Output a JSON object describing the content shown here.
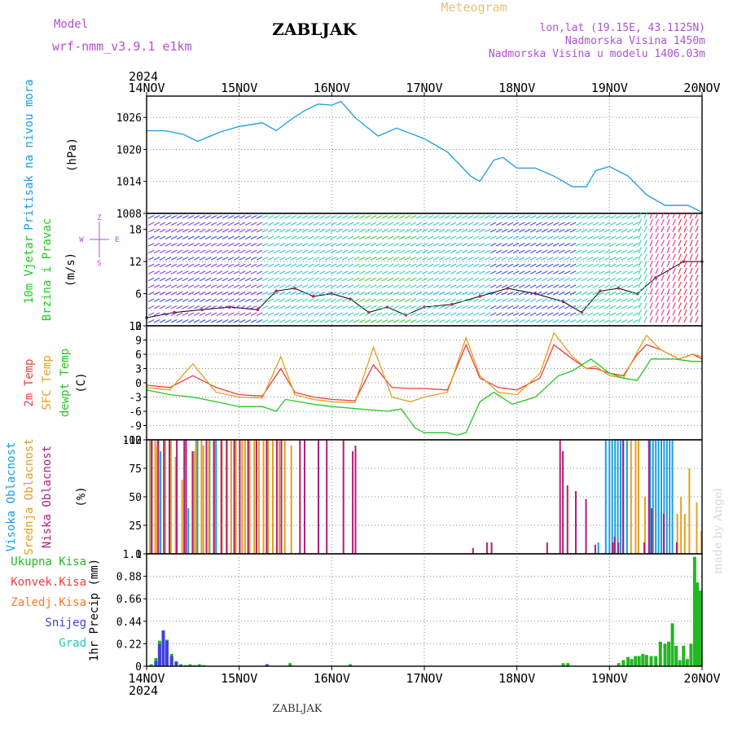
{
  "header": {
    "model_label": "Model",
    "model_name": "wrf-nmm_v3.9.1 e1km",
    "station": "ZABLJAK",
    "meteogram_label": "Meteogram",
    "coords": "lon,lat (19.15E, 43.1125N)",
    "altitude": "Nadmorska Visina 1450m",
    "model_altitude": "Nadmorska Visina u modelu 1406.03m",
    "footer_station": "ZABLJAK",
    "signature": "made by Angel"
  },
  "colors": {
    "pressure": "#1a9de0",
    "temp2m": "#f03c3c",
    "sfc_temp": "#e0a020",
    "dewpt": "#22c822",
    "cloud_high": "#1a9de0",
    "cloud_mid": "#e0a020",
    "cloud_low": "#b01e7a",
    "precip_total": "#22b822",
    "precip_conv": "#f03c3c",
    "precip_frozen": "#f07c2c",
    "precip_snow": "#4040e0",
    "precip_graupel": "#22c8b8",
    "model_label": "#b050d0"
  },
  "chart_data": {
    "type": "line",
    "x_axis": {
      "year": "2024",
      "ticks": [
        "14NOV",
        "15NOV",
        "16NOV",
        "17NOV",
        "18NOV",
        "19NOV",
        "20NOV"
      ],
      "range_days": [
        0,
        6
      ]
    },
    "panels": [
      {
        "id": "pressure",
        "type": "line",
        "ylabel": [
          "Pritisak na nivou mora",
          "(hPa)"
        ],
        "ylim": [
          1008,
          1030
        ],
        "yticks": [
          "1008",
          "1014",
          "1020",
          "1026"
        ],
        "series": [
          {
            "name": "Pritisak na nivou mora",
            "x": [
              0,
              0.2,
              0.4,
              0.55,
              0.8,
              1.0,
              1.25,
              1.4,
              1.55,
              1.7,
              1.85,
              2.0,
              2.1,
              2.25,
              2.5,
              2.7,
              2.85,
              3.0,
              3.25,
              3.5,
              3.6,
              3.75,
              3.85,
              4.0,
              4.2,
              4.4,
              4.6,
              4.75,
              4.85,
              5.0,
              5.2,
              5.4,
              5.6,
              5.85,
              6.0
            ],
            "y": [
              1023.5,
              1023.5,
              1022.8,
              1021.5,
              1023.3,
              1024.3,
              1025.0,
              1023.5,
              1025.5,
              1027.2,
              1028.5,
              1028.3,
              1029.0,
              1026.0,
              1022.5,
              1024.0,
              1023.0,
              1022.0,
              1019.5,
              1015.0,
              1014.0,
              1018.0,
              1018.5,
              1016.5,
              1016.5,
              1015.0,
              1013.0,
              1013.0,
              1016.0,
              1016.8,
              1015.0,
              1011.5,
              1009.5,
              1009.5,
              1008.2
            ]
          }
        ]
      },
      {
        "id": "wind",
        "type": "line",
        "ylabel": [
          "10m Vjetar",
          "Brzina i Pravac",
          "(m/s)"
        ],
        "compass": [
          "Z",
          "W",
          "E",
          "S"
        ],
        "ylim": [
          0,
          21
        ],
        "yticks": [
          "0",
          "6",
          "12",
          "18"
        ],
        "series": [
          {
            "name": "10m Vjetar",
            "x": [
              0,
              0.3,
              0.6,
              0.9,
              1.2,
              1.4,
              1.6,
              1.8,
              2.0,
              2.2,
              2.4,
              2.6,
              2.8,
              3.0,
              3.3,
              3.6,
              3.9,
              4.2,
              4.5,
              4.7,
              4.9,
              5.1,
              5.3,
              5.5,
              5.8,
              6.0
            ],
            "y": [
              1.5,
              2.5,
              3.0,
              3.5,
              3.0,
              6.5,
              7.0,
              5.5,
              6.0,
              5.0,
              2.5,
              3.5,
              2.0,
              3.5,
              4.0,
              5.5,
              7.0,
              6.0,
              4.5,
              2.5,
              6.5,
              7.0,
              6.0,
              9.0,
              12.0,
              12.0
            ]
          }
        ]
      },
      {
        "id": "temperature",
        "type": "line",
        "ylabel": [
          "2m Temp",
          "SFC Temp",
          "dewpt Temp",
          "(C)"
        ],
        "ylim": [
          -12,
          12
        ],
        "yticks": [
          "-12",
          "-9",
          "-6",
          "-3",
          "0",
          "3",
          "6",
          "9",
          "12"
        ],
        "series": [
          {
            "name": "2m Temp",
            "x": [
              0,
              0.25,
              0.5,
              0.75,
              1.0,
              1.25,
              1.45,
              1.6,
              1.8,
              2.0,
              2.25,
              2.45,
              2.65,
              2.85,
              3.0,
              3.25,
              3.45,
              3.6,
              3.8,
              4.0,
              4.25,
              4.4,
              4.6,
              4.75,
              4.85,
              5.0,
              5.15,
              5.3,
              5.4,
              5.55,
              5.75,
              5.9,
              6.0
            ],
            "y": [
              -0.5,
              -1.0,
              1.5,
              -1.0,
              -2.5,
              -2.8,
              3.0,
              -2.0,
              -3.0,
              -3.5,
              -3.8,
              3.8,
              -1.0,
              -1.2,
              -1.2,
              -1.5,
              8.0,
              1.0,
              -1.0,
              -1.5,
              1.0,
              8.0,
              5.0,
              3.0,
              3.0,
              2.0,
              1.5,
              6.0,
              8.0,
              7.0,
              5.0,
              6.0,
              5.0
            ]
          },
          {
            "name": "SFC Temp",
            "x": [
              0,
              0.25,
              0.5,
              0.75,
              1.0,
              1.25,
              1.45,
              1.6,
              1.8,
              2.0,
              2.25,
              2.45,
              2.65,
              2.85,
              3.0,
              3.25,
              3.45,
              3.6,
              3.8,
              4.0,
              4.25,
              4.4,
              4.6,
              4.75,
              4.85,
              5.0,
              5.15,
              5.3,
              5.4,
              5.55,
              5.75,
              5.9,
              6.0
            ],
            "y": [
              -1.0,
              -1.5,
              4.0,
              -2.0,
              -3.0,
              -3.2,
              5.5,
              -2.5,
              -3.5,
              -4.0,
              -4.2,
              7.5,
              -3.0,
              -4.0,
              -3.0,
              -2.0,
              9.5,
              1.5,
              -2.0,
              -2.5,
              2.0,
              10.5,
              5.5,
              3.0,
              3.5,
              1.5,
              1.0,
              6.5,
              10.0,
              7.0,
              5.0,
              6.0,
              5.5
            ]
          },
          {
            "name": "dewpt Temp",
            "x": [
              0,
              0.25,
              0.5,
              0.75,
              1.0,
              1.25,
              1.4,
              1.5,
              1.8,
              2.0,
              2.3,
              2.6,
              2.75,
              2.9,
              3.0,
              3.25,
              3.35,
              3.45,
              3.6,
              3.75,
              3.95,
              4.2,
              4.45,
              4.6,
              4.8,
              5.0,
              5.15,
              5.3,
              5.45,
              5.7,
              5.9,
              6.0
            ],
            "y": [
              -1.5,
              -2.5,
              -3.0,
              -4.0,
              -5.0,
              -5.0,
              -6.0,
              -3.5,
              -4.5,
              -5.0,
              -5.5,
              -6.0,
              -5.5,
              -9.5,
              -10.5,
              -10.5,
              -11.0,
              -10.5,
              -4.0,
              -2.0,
              -4.5,
              -3.0,
              1.5,
              2.5,
              5.0,
              2.0,
              1.0,
              0.5,
              5.0,
              5.0,
              4.5,
              4.5
            ]
          }
        ]
      },
      {
        "id": "clouds",
        "type": "bar",
        "ylabel": [
          "Visoka Oblacnost",
          "Srednja Oblacnost",
          "Niska Oblacnost",
          "(%)"
        ],
        "ylim": [
          0,
          100
        ],
        "yticks": [
          "0",
          "25",
          "50",
          "75",
          "100"
        ],
        "series": [
          {
            "name": "Visoka Oblacnost",
            "x": [
              0.05,
              0.12,
              0.15,
              0.2,
              0.45,
              0.55,
              0.68,
              0.75,
              4.88,
              4.96,
              5.0,
              5.03,
              5.06,
              5.09,
              5.12,
              5.15,
              5.19,
              5.44,
              5.47,
              5.5,
              5.53,
              5.56,
              5.59,
              5.62,
              5.65,
              5.68
            ],
            "y": [
              100,
              100,
              90,
              100,
              40,
              100,
              100,
              100,
              10,
              100,
              100,
              100,
              100,
              100,
              100,
              100,
              100,
              100,
              100,
              100,
              100,
              100,
              100,
              100,
              100,
              100
            ]
          },
          {
            "name": "Srednja Oblacnost",
            "x": [
              0.02,
              0.08,
              0.1,
              0.18,
              0.25,
              0.3,
              0.37,
              0.5,
              0.52,
              0.58,
              0.6,
              0.66,
              0.72,
              0.8,
              0.85,
              0.9,
              0.95,
              1.02,
              1.05,
              1.1,
              1.15,
              1.2,
              1.25,
              1.3,
              1.35,
              1.42,
              1.48,
              1.55,
              5.22,
              5.27,
              5.3,
              5.37,
              5.72,
              5.76,
              5.8,
              5.85,
              5.93,
              5.98
            ],
            "y": [
              100,
              100,
              95,
              100,
              100,
              85,
              65,
              90,
              100,
              100,
              95,
              100,
              100,
              100,
              100,
              100,
              100,
              100,
              100,
              100,
              100,
              100,
              100,
              100,
              100,
              100,
              100,
              95,
              100,
              100,
              100,
              50,
              35,
              50,
              35,
              75,
              45,
              20
            ]
          },
          {
            "name": "Niska Oblacnost",
            "x": [
              0.03,
              0.1,
              0.16,
              0.22,
              0.3,
              0.38,
              0.4,
              0.47,
              0.62,
              0.7,
              0.78,
              0.84,
              0.92,
              0.98,
              1.07,
              1.16,
              1.27,
              1.38,
              1.43,
              1.63,
              1.68,
              1.83,
              1.92,
              2.1,
              2.2,
              2.23,
              3.5,
              3.65,
              3.7,
              4.3,
              4.44,
              4.47,
              4.52,
              4.61,
              4.72,
              4.82,
              5.01,
              5.03,
              5.07,
              5.12,
              5.35,
              5.4,
              5.43,
              5.56,
              5.7
            ],
            "y": [
              100,
              100,
              100,
              100,
              100,
              100,
              100,
              90,
              100,
              100,
              100,
              100,
              100,
              100,
              100,
              100,
              100,
              100,
              100,
              100,
              100,
              100,
              100,
              100,
              90,
              95,
              5,
              10,
              10,
              10,
              100,
              90,
              60,
              55,
              48,
              8,
              10,
              15,
              10,
              100,
              10,
              100,
              40,
              35,
              10
            ]
          }
        ]
      },
      {
        "id": "precip",
        "type": "bar",
        "ylabel": [
          "Ukupna Kisa",
          "Konvek.Kisa",
          "Zaledj.Kisa",
          "Snijeg",
          "Grad",
          "1hr Precip (mm)"
        ],
        "ylim": [
          0,
          1.1
        ],
        "yticks": [
          "0",
          "0.22",
          "0.44",
          "0.66",
          "0.88",
          "1.1"
        ],
        "series": [
          {
            "name": "Ukupna Kisa",
            "x": [
              0.05,
              0.1,
              0.14,
              0.18,
              0.22,
              0.27,
              0.32,
              0.37,
              0.42,
              0.47,
              0.52,
              0.57,
              0.62,
              1.3,
              1.55,
              2.2,
              4.5,
              4.55,
              5.1,
              5.15,
              5.2,
              5.24,
              5.28,
              5.32,
              5.36,
              5.4,
              5.45,
              5.5,
              5.55,
              5.6,
              5.64,
              5.68,
              5.72,
              5.76,
              5.8,
              5.84,
              5.88,
              5.92,
              5.95,
              5.98
            ],
            "y": [
              0.02,
              0.08,
              0.25,
              0.34,
              0.26,
              0.12,
              0.05,
              0.02,
              0.01,
              0.02,
              0.01,
              0.02,
              0.01,
              0.02,
              0.03,
              0.02,
              0.03,
              0.03,
              0.03,
              0.06,
              0.09,
              0.07,
              0.1,
              0.1,
              0.12,
              0.11,
              0.1,
              0.1,
              0.24,
              0.22,
              0.24,
              0.42,
              0.2,
              0.06,
              0.2,
              0.07,
              0.22,
              1.07,
              0.82,
              0.74
            ]
          },
          {
            "name": "Snijeg",
            "x": [
              0.1,
              0.14,
              0.18,
              0.22,
              0.27,
              0.32,
              0.37,
              1.3
            ],
            "y": [
              0.05,
              0.22,
              0.35,
              0.25,
              0.1,
              0.04,
              0.01,
              0.02
            ]
          }
        ]
      }
    ]
  }
}
